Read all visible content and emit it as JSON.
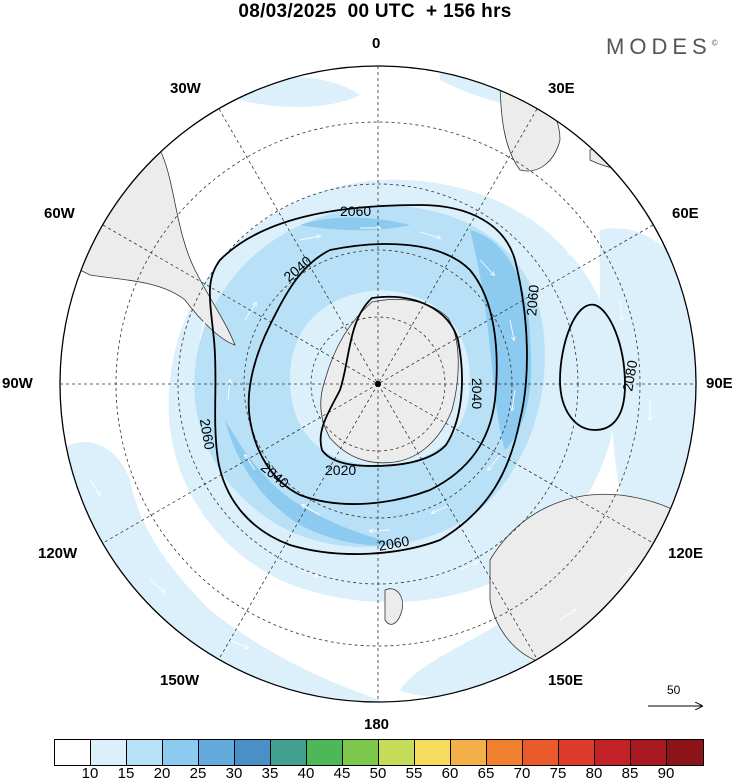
{
  "header": {
    "title": "08/03/2025  00 UTC  + 156 hrs",
    "brand": "MODES",
    "brand_mark": "©"
  },
  "map": {
    "projection": "south-polar-stereographic",
    "longitude_labels": {
      "lon_0": "0",
      "lon_30e": "30E",
      "lon_60e": "60E",
      "lon_90e": "90E",
      "lon_120e": "120E",
      "lon_150e": "150E",
      "lon_180": "180",
      "lon_150w": "150W",
      "lon_120w": "120W",
      "lon_90w": "90W",
      "lon_60w": "60W",
      "lon_30w": "30W"
    },
    "contour_labels": {
      "c2020": "2020",
      "c2040a": "2040",
      "c2040b": "2040",
      "c2040c": "2040",
      "c2060a": "2060",
      "c2060b": "2060",
      "c2060c": "2060",
      "c2060d": "2060",
      "c2080": "2080"
    },
    "reference_vector_label": "50",
    "colors": {
      "land": "#ececec",
      "shade_10_15": "#dcf0fb",
      "shade_15_20": "#b8e0f7",
      "shade_20_25": "#8ccaf0",
      "contour": "#000000"
    }
  },
  "colorbar": {
    "labels": [
      "10",
      "15",
      "20",
      "25",
      "30",
      "35",
      "40",
      "45",
      "50",
      "55",
      "60",
      "65",
      "70",
      "75",
      "80",
      "85",
      "90"
    ],
    "colors": [
      "#ffffff",
      "#dcf0fb",
      "#b8e0f7",
      "#8ccaf0",
      "#64aadd",
      "#4a8fc6",
      "#42a08e",
      "#4cb85a",
      "#7cc84c",
      "#c4dc58",
      "#f6dc5c",
      "#f4b048",
      "#f08030",
      "#ea5a2a",
      "#dc3a2a",
      "#c42028",
      "#a81820",
      "#8c1418"
    ]
  }
}
